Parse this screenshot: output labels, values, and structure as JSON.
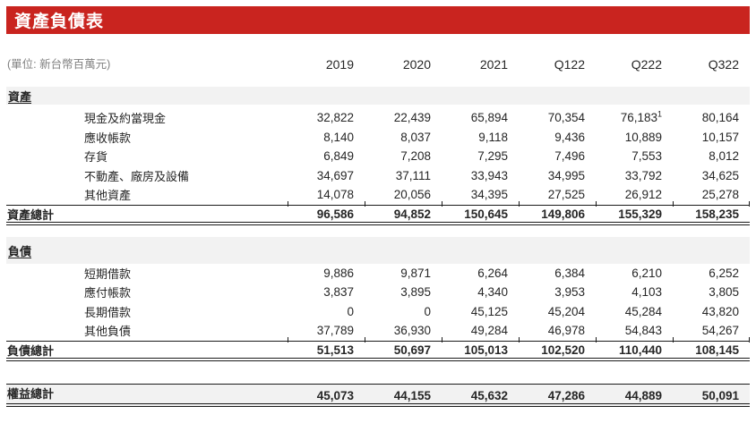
{
  "title": "資產負債表",
  "unit_label": "(單位: 新台幣百萬元)",
  "columns": [
    "2019",
    "2020",
    "2021",
    "Q122",
    "Q222",
    "Q322"
  ],
  "sections": [
    {
      "id": "assets",
      "name": "資產",
      "rows": [
        {
          "label": "現金及約當現金",
          "values": [
            "32,822",
            "22,439",
            "65,894",
            "70,354",
            "76,183",
            "80,164"
          ],
          "sup": {
            "col": 4,
            "text": "1"
          }
        },
        {
          "label": "應收帳款",
          "values": [
            "8,140",
            "8,037",
            "9,118",
            "9,436",
            "10,889",
            "10,157"
          ]
        },
        {
          "label": "存貨",
          "values": [
            "6,849",
            "7,208",
            "7,295",
            "7,496",
            "7,553",
            "8,012"
          ]
        },
        {
          "label": "不動產、廠房及設備",
          "values": [
            "34,697",
            "37,111",
            "33,943",
            "34,995",
            "33,792",
            "34,625"
          ]
        },
        {
          "label": "其他資產",
          "values": [
            "14,078",
            "20,056",
            "34,395",
            "27,525",
            "26,912",
            "25,278"
          ]
        }
      ],
      "total": {
        "label": "資產總計",
        "values": [
          "96,586",
          "94,852",
          "150,645",
          "149,806",
          "155,329",
          "158,235"
        ]
      }
    },
    {
      "id": "liabilities",
      "name": "負債",
      "rows": [
        {
          "label": "短期借款",
          "values": [
            "9,886",
            "9,871",
            "6,264",
            "6,384",
            "6,210",
            "6,252"
          ]
        },
        {
          "label": "應付帳款",
          "values": [
            "3,837",
            "3,895",
            "4,340",
            "3,953",
            "4,103",
            "3,805"
          ]
        },
        {
          "label": "長期借款",
          "values": [
            "0",
            "0",
            "45,125",
            "45,204",
            "45,284",
            "43,820"
          ]
        },
        {
          "label": "其他負債",
          "values": [
            "37,789",
            "36,930",
            "49,284",
            "46,978",
            "54,843",
            "54,267"
          ]
        }
      ],
      "total": {
        "label": "負債總計",
        "values": [
          "51,513",
          "50,697",
          "105,013",
          "102,520",
          "110,440",
          "108,145"
        ]
      }
    }
  ],
  "equity_total": {
    "label": "權益總計",
    "values": [
      "45,073",
      "44,155",
      "45,632",
      "47,286",
      "44,889",
      "50,091"
    ]
  },
  "colors": {
    "accent_red": "#C9241F",
    "band_gray": "#F2F2F2",
    "unit_text_gray": "#7F7F7F",
    "text": "#262626"
  }
}
